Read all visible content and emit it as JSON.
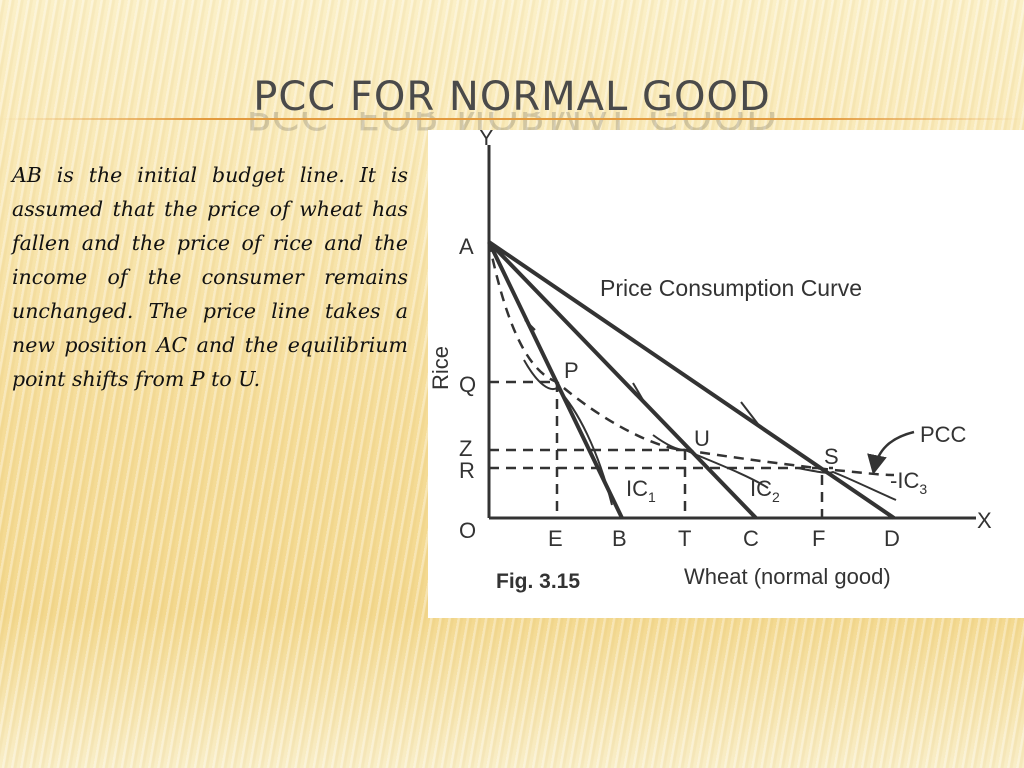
{
  "slide": {
    "title": "PCC  FOR NORMAL GOOD",
    "body": "AB is the initial budget line. It is assumed that the price of wheat has fallen and the price of rice and the income of the consumer remains unchanged. The price line takes a new position AC and the equilibrium point shifts from P to U."
  },
  "figure": {
    "axis_labels": {
      "y": "Y",
      "x": "X",
      "origin": "O",
      "y_title": "Rice",
      "x_title": "Wheat  (normal good)"
    },
    "y_points": [
      "A",
      "Q",
      "Z",
      "R"
    ],
    "x_points": [
      "E",
      "B",
      "T",
      "C",
      "F",
      "D"
    ],
    "equilibrium_points": [
      "P",
      "U",
      "S"
    ],
    "curve_labels": {
      "price_consumption_curve": "Price Consumption Curve",
      "pcc": "PCC",
      "ic1_base": "IC",
      "ic1_sub": "1",
      "ic2_base": "IC",
      "ic2_sub": "2",
      "ic3_base": "-IC",
      "ic3_sub": "3"
    },
    "caption": "Fig. 3.15",
    "colors": {
      "lines": "#333333",
      "background": "#ffffff"
    }
  }
}
